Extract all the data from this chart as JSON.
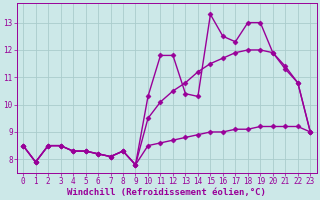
{
  "background_color": "#cce8e8",
  "grid_color": "#aacccc",
  "line_color": "#990099",
  "marker": "D",
  "markersize": 2.5,
  "linewidth": 1.0,
  "xlabel": "Windchill (Refroidissement éolien,°C)",
  "xlabel_fontsize": 6.5,
  "tick_fontsize": 5.5,
  "ylim": [
    7.5,
    13.7
  ],
  "xlim": [
    -0.5,
    23.5
  ],
  "yticks": [
    8,
    9,
    10,
    11,
    12,
    13
  ],
  "xticks": [
    0,
    1,
    2,
    3,
    4,
    5,
    6,
    7,
    8,
    9,
    10,
    11,
    12,
    13,
    14,
    15,
    16,
    17,
    18,
    19,
    20,
    21,
    22,
    23
  ],
  "line1_x": [
    0,
    1,
    2,
    3,
    4,
    5,
    6,
    7,
    8,
    9,
    10,
    11,
    12,
    13,
    14,
    15,
    16,
    17,
    18,
    19,
    20,
    21,
    22,
    23
  ],
  "line1_y": [
    8.5,
    7.9,
    8.5,
    8.5,
    8.3,
    8.3,
    8.2,
    8.1,
    8.3,
    7.8,
    8.5,
    8.6,
    8.7,
    8.8,
    8.9,
    9.0,
    9.0,
    9.1,
    9.1,
    9.2,
    9.2,
    9.2,
    9.2,
    9.0
  ],
  "line2_x": [
    0,
    1,
    2,
    3,
    4,
    5,
    6,
    7,
    8,
    9,
    10,
    11,
    12,
    13,
    14,
    15,
    16,
    17,
    18,
    19,
    20,
    21,
    22,
    23
  ],
  "line2_y": [
    8.5,
    7.9,
    8.5,
    8.5,
    8.3,
    8.3,
    8.2,
    8.1,
    8.3,
    7.8,
    9.5,
    10.1,
    10.5,
    10.8,
    11.2,
    11.5,
    11.7,
    11.9,
    12.0,
    12.0,
    11.9,
    11.4,
    10.8,
    9.0
  ],
  "line3_x": [
    0,
    1,
    2,
    3,
    4,
    5,
    6,
    7,
    8,
    9,
    10,
    11,
    12,
    13,
    14,
    15,
    16,
    17,
    18,
    19,
    20,
    21,
    22,
    23
  ],
  "line3_y": [
    8.5,
    7.9,
    8.5,
    8.5,
    8.3,
    8.3,
    8.2,
    8.1,
    8.3,
    7.8,
    10.3,
    11.8,
    11.8,
    10.4,
    10.3,
    13.3,
    12.5,
    12.3,
    13.0,
    13.0,
    11.9,
    11.3,
    10.8,
    9.0
  ]
}
